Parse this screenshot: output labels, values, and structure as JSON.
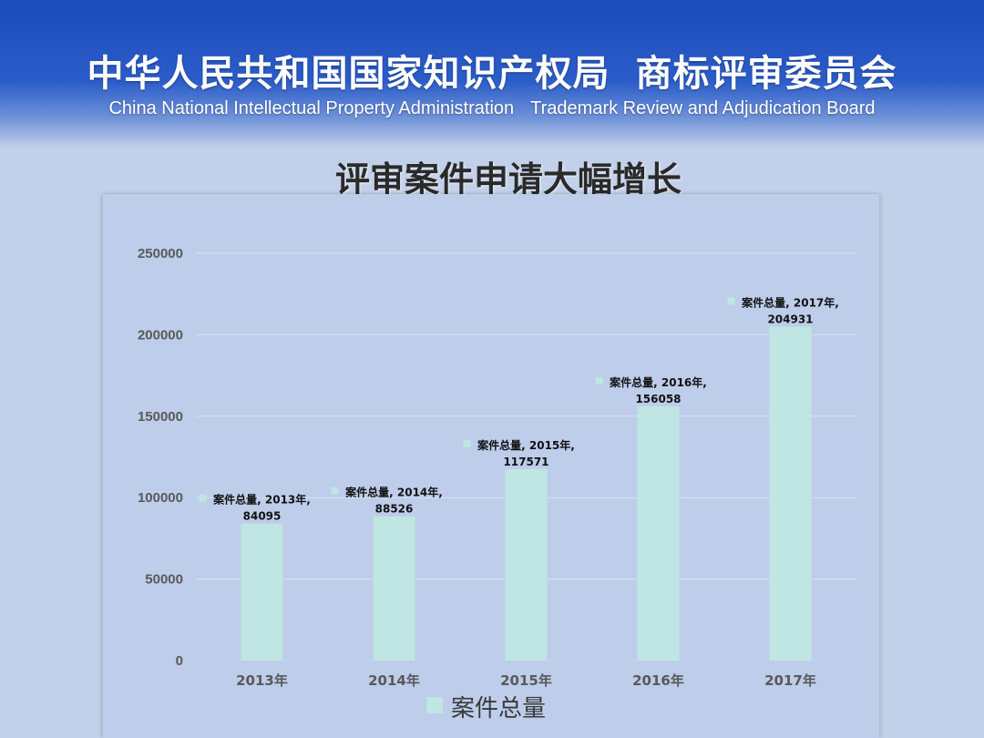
{
  "header": {
    "org_cn_1": "中华人民共和国国家知识产权局",
    "org_cn_2": "商标评审委员会",
    "org_en_1": "China National Intellectual Property Administration",
    "org_en_2": "Trademark Review and Adjudication Board"
  },
  "page_title": "评审案件申请大幅增长",
  "colors": {
    "banner": "#2b5cc9",
    "background": "#c2d0e9",
    "bar": "#bfe6e2",
    "gridline": "#d9e2f3"
  },
  "chart_data": {
    "type": "bar",
    "title": "",
    "xlabel": "",
    "ylabel": "",
    "categories": [
      "2013年",
      "2014年",
      "2015年",
      "2016年",
      "2017年"
    ],
    "series": [
      {
        "name": "案件总量",
        "values": [
          84095,
          88526,
          117571,
          156058,
          204931
        ]
      }
    ],
    "data_labels": [
      [
        "案件总量, 2013年,",
        "84095"
      ],
      [
        "案件总量, 2014年,",
        "88526"
      ],
      [
        "案件总量, 2015年,",
        "117571"
      ],
      [
        "案件总量, 2016年,",
        "156058"
      ],
      [
        "案件总量, 2017年,",
        "204931"
      ]
    ],
    "yticks": [
      "0",
      "50000",
      "100000",
      "150000",
      "200000",
      "250000"
    ],
    "ylim": [
      0,
      250000
    ],
    "grid": true,
    "legend_position": "bottom"
  }
}
